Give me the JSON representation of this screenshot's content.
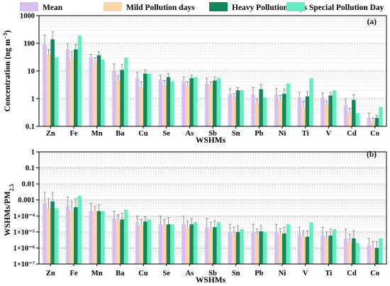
{
  "legend": [
    {
      "name": "Mean",
      "color": "#d8bff0"
    },
    {
      "name": "Mild Pollution days",
      "color": "#fdd6a6"
    },
    {
      "name": "Heavy Pollution Days",
      "color": "#12875a"
    },
    {
      "name": "Special Pollution Day",
      "color": "#66ecc3"
    }
  ],
  "chart_data": [
    {
      "type": "bar",
      "panel": "(a)",
      "ylabel_main": "Concentration (ng m",
      "ylabel_sup": "−3",
      "ylabel_end": ")",
      "xlabel": "WSHMs",
      "yscale": "log",
      "ylim": [
        0.1,
        1000
      ],
      "yticks": [
        "0.1",
        "1",
        "10",
        "100",
        "1000"
      ],
      "categories": [
        "Zn",
        "Fe",
        "Mn",
        "Ba",
        "Cu",
        "Se",
        "As",
        "Sb",
        "Sn",
        "Pb",
        "Ni",
        "Ti",
        "V",
        "Cd",
        "Co"
      ],
      "series": [
        {
          "name": "Mean",
          "values": [
            90,
            60,
            30,
            10,
            5.5,
            4.8,
            4.3,
            3.5,
            1.5,
            1.4,
            1.4,
            1.1,
            1.1,
            0.6,
            0.2
          ],
          "errors": [
            200,
            100,
            40,
            18,
            9,
            7,
            6,
            5.5,
            2.3,
            2.5,
            2.3,
            1.7,
            1.6,
            1.0,
            0.3
          ]
        },
        {
          "name": "Mild Pollution days",
          "values": [
            40,
            30,
            20,
            4.5,
            2.5,
            3.0,
            3.0,
            3.0,
            1.0,
            0.7,
            0.9,
            0.5,
            0.6,
            0.3,
            0.15
          ],
          "errors": [
            60,
            50,
            30,
            7,
            4,
            4.5,
            4.0,
            4.0,
            1.5,
            1.0,
            1.3,
            0.8,
            0.8,
            0.45,
            0.2
          ]
        },
        {
          "name": "Heavy Pollution Days",
          "values": [
            140,
            60,
            37,
            11,
            8,
            6,
            5.5,
            4.5,
            2.0,
            2.2,
            1.5,
            1.2,
            1.3,
            0.9,
            0.2
          ],
          "errors": [
            260,
            90,
            50,
            17,
            11,
            8,
            7,
            6,
            2.5,
            3.3,
            2.2,
            1.8,
            1.7,
            1.4,
            0.25
          ]
        },
        {
          "name": "Special Pollution Day",
          "values": [
            32,
            190,
            26,
            30,
            8,
            4.2,
            6,
            5.5,
            2.0,
            1.1,
            3.5,
            5.5,
            2.0,
            0.3,
            0.5
          ]
        }
      ]
    },
    {
      "type": "bar",
      "panel": "(b)",
      "ylabel_main": "WSHMs/PM",
      "ylabel_sub": "2.5",
      "xlabel": "WSHMs",
      "yscale": "log",
      "ylim": [
        1e-07,
        1
      ],
      "yticks": [
        "1×10⁻⁷",
        "1×10⁻⁶",
        "1×10⁻⁵",
        "1×10⁻⁴",
        "0.001",
        "0.01",
        "0.1",
        "1"
      ],
      "categories": [
        "Zn",
        "Fe",
        "Mn",
        "Ba",
        "Cu",
        "Se",
        "As",
        "Sb",
        "Sn",
        "Pb",
        "Ni",
        "V",
        "Ti",
        "Cd",
        "Co"
      ],
      "series": [
        {
          "name": "Mean",
          "values": [
            0.0006,
            0.0004,
            0.0002,
            7e-05,
            4e-05,
            3e-05,
            3e-05,
            2e-05,
            1e-05,
            9e-06,
            9e-06,
            7e-06,
            6e-06,
            4e-06,
            1.5e-06
          ],
          "errors": [
            0.003,
            0.0015,
            0.0006,
            0.0002,
            0.0001,
            0.0001,
            0.0001,
            7e-05,
            3e-05,
            3e-05,
            3e-05,
            2e-05,
            2e-05,
            1.5e-05,
            4e-06
          ]
        },
        {
          "name": "Mild Pollution days",
          "values": [
            0.0003,
            0.0002,
            0.0002,
            5e-05,
            2.5e-05,
            2.5e-05,
            2e-05,
            1.5e-05,
            8e-06,
            6e-06,
            7e-06,
            5e-06,
            4e-06,
            2.5e-06,
            1e-06
          ],
          "errors": [
            0.0012,
            0.0008,
            0.0004,
            0.00012,
            6e-05,
            6e-05,
            5e-05,
            4e-05,
            2e-05,
            1.5e-05,
            1.6e-05,
            1.2e-05,
            1e-05,
            7e-06,
            2.5e-06
          ]
        },
        {
          "name": "Heavy Pollution Days",
          "values": [
            0.0008,
            0.00035,
            0.0002,
            6e-05,
            4.5e-05,
            3e-05,
            3e-05,
            2e-05,
            1e-05,
            1.1e-05,
            8e-06,
            5e-06,
            6e-06,
            4e-06,
            1e-06
          ],
          "errors": [
            0.003,
            0.0012,
            0.0005,
            0.00015,
            9e-05,
            8e-05,
            7e-05,
            5e-05,
            2.5e-05,
            2.5e-05,
            2e-05,
            1.2e-05,
            1.5e-05,
            1.2e-05,
            2.5e-06
          ]
        },
        {
          "name": "Special Pollution Day",
          "values": [
            0.0003,
            0.0018,
            0.0002,
            0.00025,
            6e-05,
            3e-05,
            4e-05,
            4e-05,
            1.5e-05,
            1e-05,
            3e-05,
            4e-05,
            1.5e-05,
            2e-06,
            4e-06
          ]
        }
      ]
    }
  ]
}
